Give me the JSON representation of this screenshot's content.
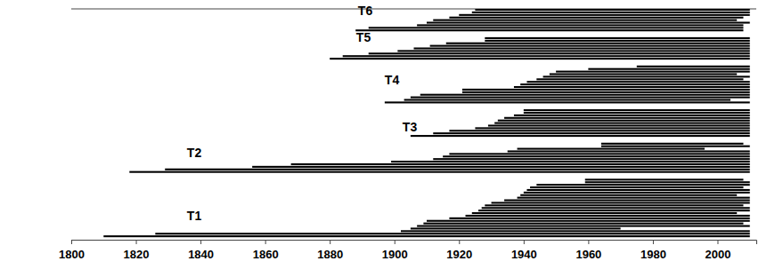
{
  "chart_data": {
    "type": "range",
    "orientation": "horizontal",
    "color": "#000000",
    "tick_labels": "x",
    "xlim": [
      1800,
      2012
    ],
    "xticks": [
      1800,
      1820,
      1840,
      1860,
      1880,
      1900,
      1920,
      1940,
      1960,
      1980,
      2000
    ],
    "groups": [
      {
        "name": "T1",
        "starts": [
          1810,
          1826,
          1902,
          1905,
          1907,
          1909,
          1910,
          1917,
          1922,
          1924,
          1926,
          1927,
          1928,
          1930,
          1934,
          1938,
          1939,
          1940,
          1941,
          1942,
          1944,
          1959,
          1959
        ],
        "ends": [
          2010,
          2010,
          2010,
          1970,
          2010,
          2008,
          2010,
          2010,
          2010,
          2006,
          2010,
          2010,
          2008,
          2010,
          2010,
          2010,
          2006,
          2010,
          2010,
          2008,
          2010,
          2010,
          2008
        ]
      },
      {
        "name": "T2",
        "starts": [
          1818,
          1829,
          1856,
          1868,
          1899,
          1912,
          1915,
          1917,
          1935,
          1938,
          1964,
          1964
        ],
        "ends": [
          2010,
          2010,
          2010,
          2010,
          2010,
          2010,
          2010,
          2010,
          2010,
          1996,
          2010,
          2008
        ]
      },
      {
        "name": "T3",
        "starts": [
          1905,
          1912,
          1917,
          1925,
          1929,
          1931,
          1932,
          1934,
          1937,
          1940,
          1940
        ],
        "ends": [
          2010,
          2010,
          2010,
          2010,
          2010,
          2010,
          2010,
          2010,
          2010,
          2010,
          2010
        ]
      },
      {
        "name": "T4",
        "starts": [
          1897,
          1903,
          1905,
          1908,
          1921,
          1921,
          1937,
          1939,
          1941,
          1944,
          1946,
          1948,
          1950,
          1960,
          1975
        ],
        "ends": [
          2010,
          2004,
          2010,
          2010,
          2010,
          2010,
          2010,
          2010,
          2010,
          2008,
          2010,
          2006,
          2010,
          2010,
          2010
        ]
      },
      {
        "name": "T5",
        "starts": [
          1880,
          1884,
          1892,
          1901,
          1906,
          1911,
          1916,
          1928,
          1928
        ],
        "ends": [
          2010,
          2010,
          2010,
          2010,
          2010,
          2010,
          2010,
          2010,
          2010
        ]
      },
      {
        "name": "T6",
        "starts": [
          1888,
          1892,
          1907,
          1910,
          1912,
          1917,
          1920,
          1924,
          1925
        ],
        "ends": [
          2008,
          2008,
          2008,
          2010,
          2006,
          2008,
          2010,
          2010,
          2010
        ]
      }
    ]
  }
}
